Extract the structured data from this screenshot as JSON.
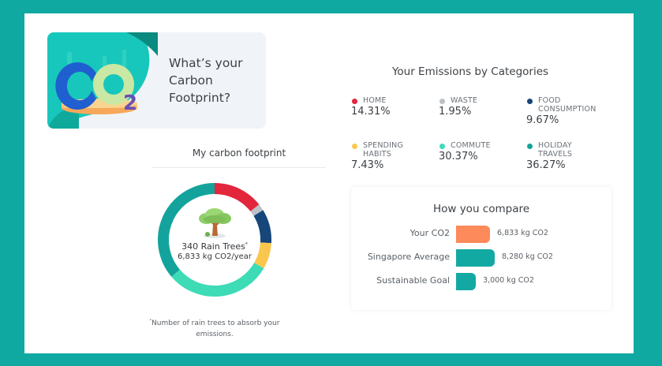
{
  "colors": {
    "frame": "#0fa9a2",
    "home": "#e2263c",
    "waste": "#bcc2c7",
    "food": "#17467a",
    "spending": "#fac74e",
    "commute": "#3ddbb6",
    "holiday": "#13a39c",
    "your_co2": "#fc8a5a",
    "singapore": "#13a9a3",
    "goal": "#13a9a3"
  },
  "hero": {
    "title_line1": "What’s your",
    "title_line2": "Carbon",
    "title_line3": "Footprint?",
    "illustration": "co2-illustration"
  },
  "footprint": {
    "title": "My carbon footprint",
    "trees_count": "340 Rain Trees",
    "trees_marker": "*",
    "co2_per_year": "6,833 kg CO2/year",
    "icon": "tree-icon",
    "footnote_marker": "*",
    "footnote_line1": "Number of rain trees to absorb your",
    "footnote_line2": "emissions."
  },
  "categories": {
    "title": "Your Emissions by Categories",
    "items": [
      {
        "label_line1": "HOME",
        "label_line2": "",
        "value": "14.31%"
      },
      {
        "label_line1": "WASTE",
        "label_line2": "",
        "value": "1.95%"
      },
      {
        "label_line1": "FOOD",
        "label_line2": "CONSUMPTION",
        "value": "9.67%"
      },
      {
        "label_line1": "SPENDING",
        "label_line2": "HABITS",
        "value": "7.43%"
      },
      {
        "label_line1": "COMMUTE",
        "label_line2": "",
        "value": "30.37%"
      },
      {
        "label_line1": "HOLIDAY",
        "label_line2": "TRAVELS",
        "value": "36.27%"
      }
    ]
  },
  "compare": {
    "title": "How you compare",
    "rows": [
      {
        "label": "Your CO2",
        "value": "6,833 kg CO2"
      },
      {
        "label": "Singapore Average",
        "value": "8,280 kg CO2"
      },
      {
        "label": "Sustainable Goal",
        "value": "3,000 kg CO2"
      }
    ]
  },
  "chart_data": [
    {
      "type": "pie",
      "title": "My carbon footprint",
      "categories": [
        "Home",
        "Waste",
        "Food Consumption",
        "Spending Habits",
        "Commute",
        "Holiday Travels"
      ],
      "values": [
        14.31,
        1.95,
        9.67,
        7.43,
        30.37,
        36.27
      ],
      "center_text": [
        "340 Rain Trees",
        "6,833 kg CO2/year"
      ],
      "style": "donut"
    },
    {
      "type": "bar",
      "orientation": "horizontal",
      "title": "How you compare",
      "categories": [
        "Your CO2",
        "Singapore Average",
        "Sustainable Goal"
      ],
      "values": [
        6833,
        8280,
        3000
      ],
      "unit": "kg CO2"
    }
  ]
}
